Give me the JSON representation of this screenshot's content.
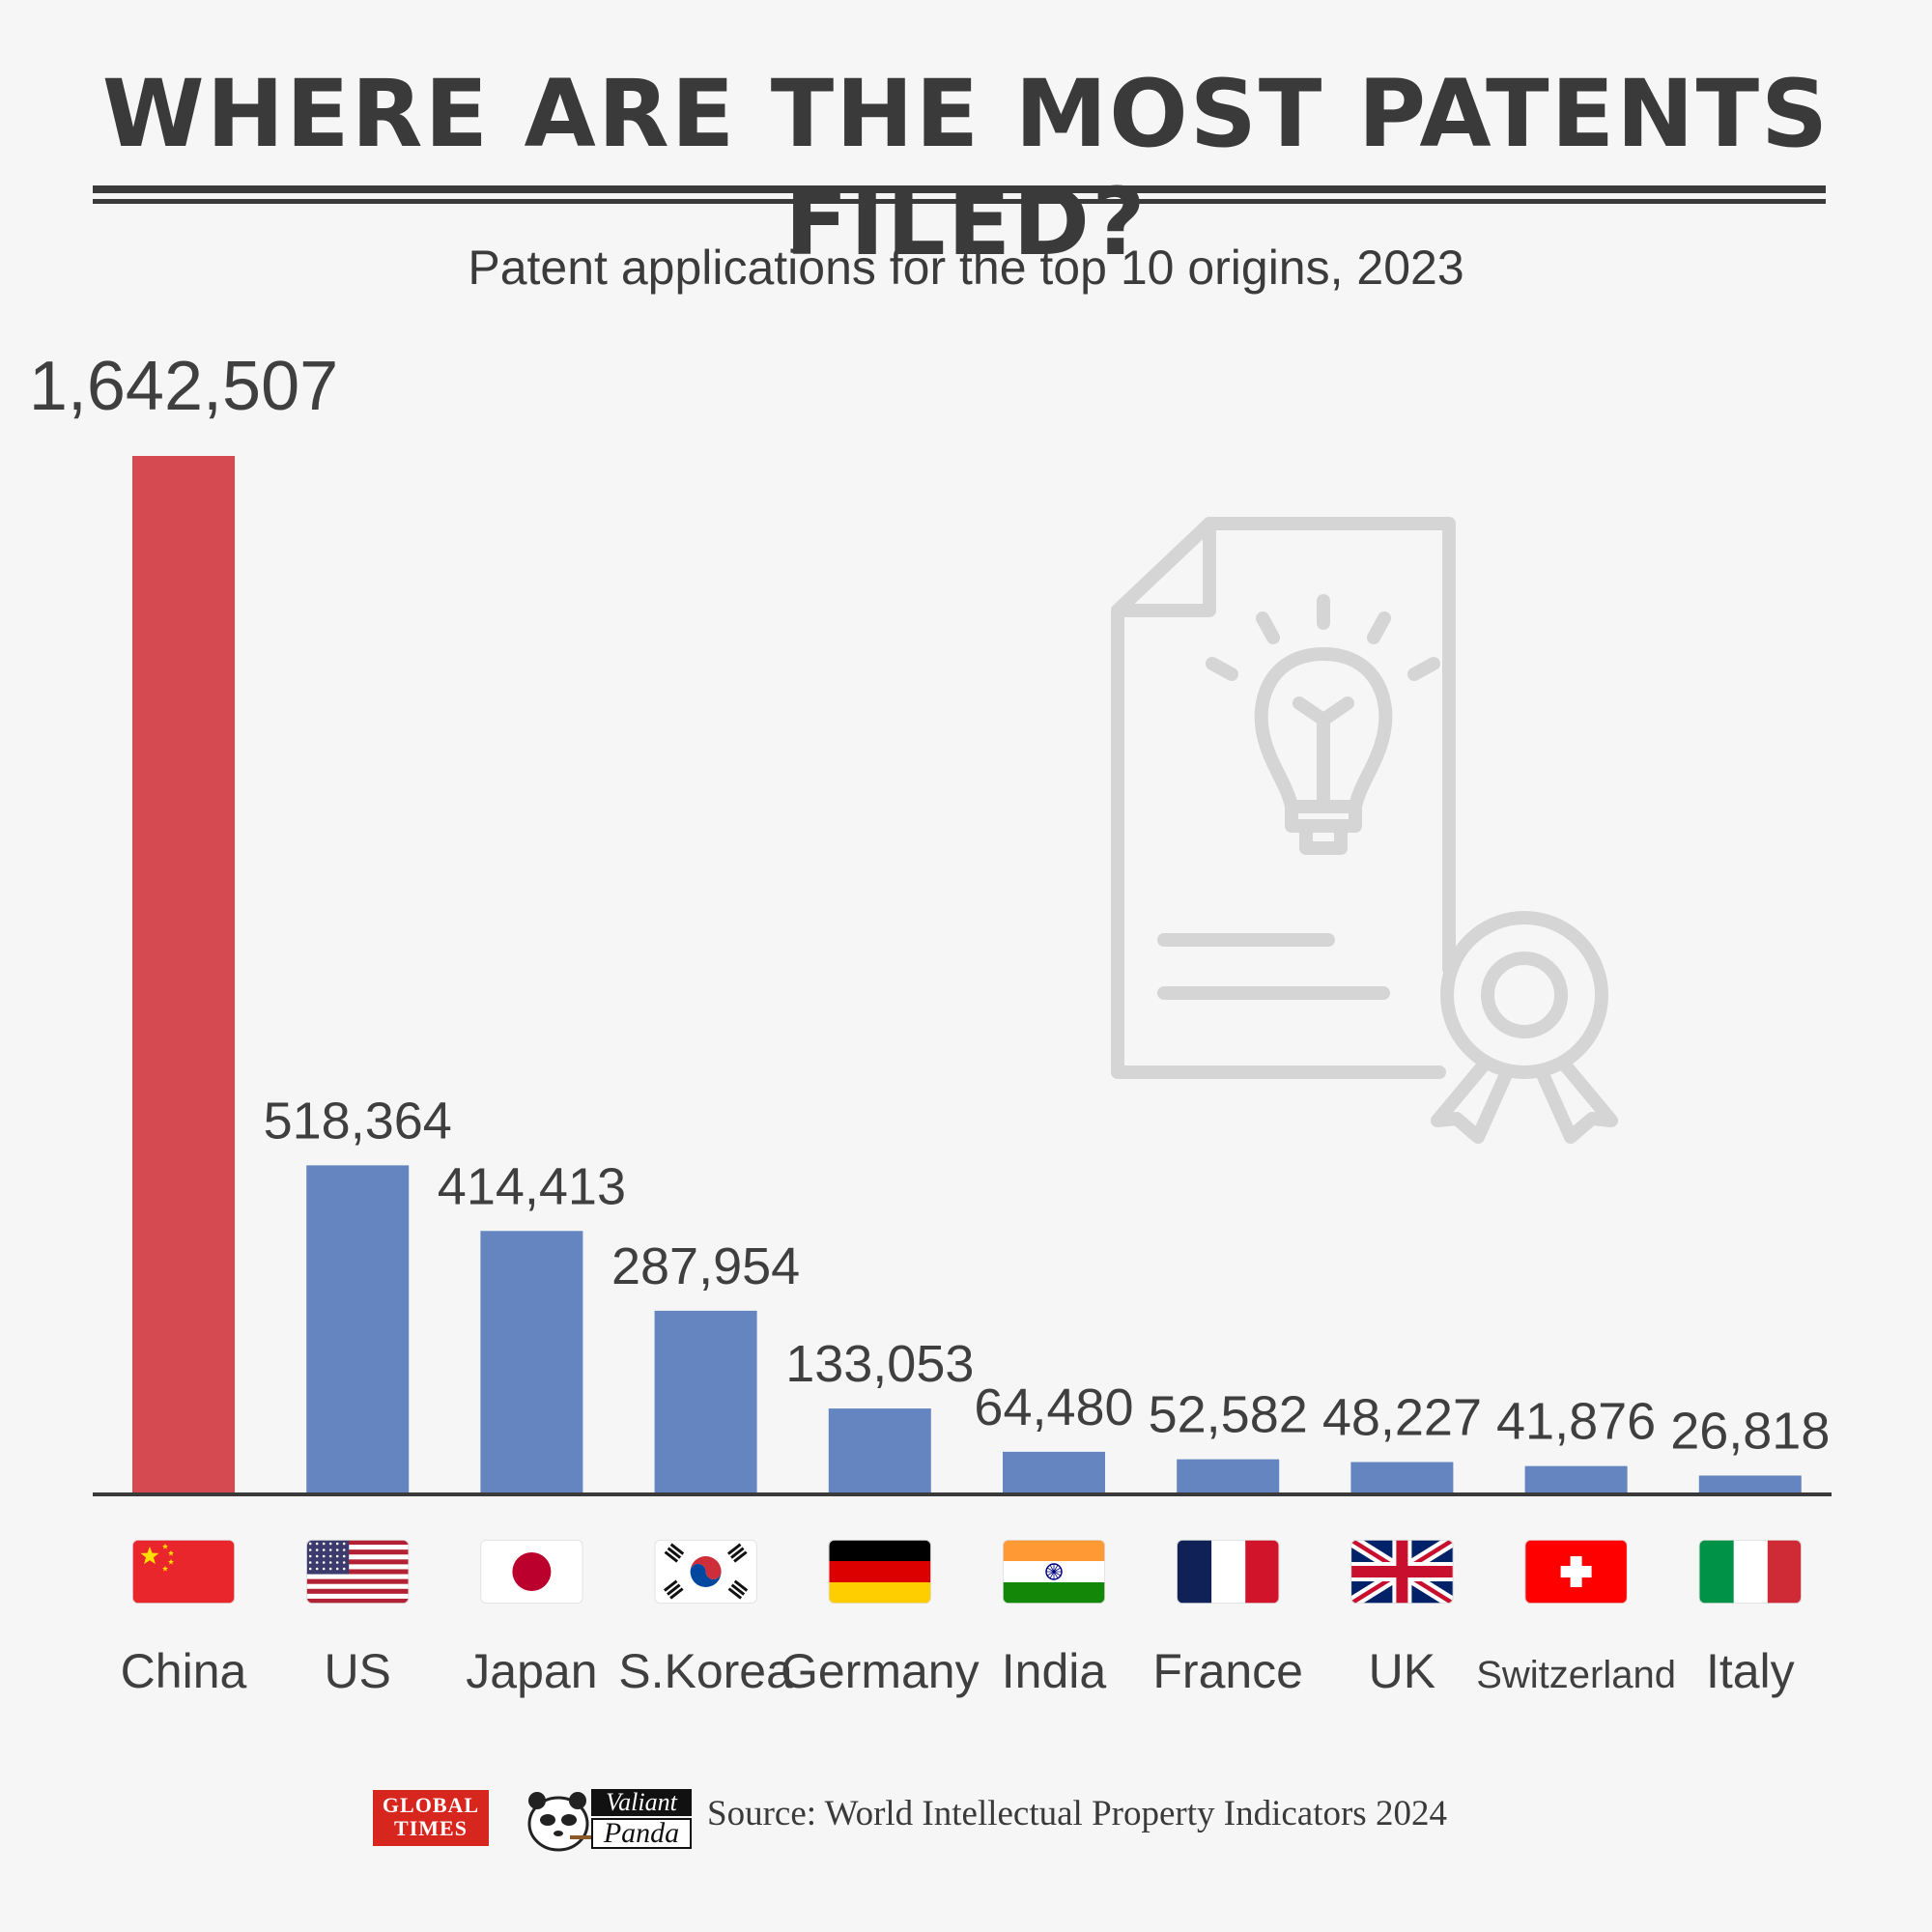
{
  "header": {
    "title": "WHERE ARE THE MOST PATENTS FILED?",
    "subtitle": "Patent applications for the top 10 origins, 2023"
  },
  "chart_data": {
    "type": "bar",
    "title": "WHERE ARE THE MOST PATENTS FILED?",
    "subtitle": "Patent applications for the top 10 origins, 2023",
    "xlabel": "",
    "ylabel": "",
    "categories": [
      "China",
      "US",
      "Japan",
      "S.Korea",
      "Germany",
      "India",
      "France",
      "UK",
      "Switzerland",
      "Italy"
    ],
    "values": [
      1642507,
      518364,
      414413,
      287954,
      133053,
      64480,
      52582,
      48227,
      41876,
      26818
    ],
    "value_labels": [
      "1,642,507",
      "518,364",
      "414,413",
      "287,954",
      "133,053",
      "64,480",
      "52,582",
      "48,227",
      "41,876",
      "26,818"
    ],
    "ylim": [
      0,
      1642507
    ],
    "grid": false,
    "legend": "none",
    "colors": {
      "highlight": "#d44a50",
      "default": "#6585c0",
      "axis": "#3a3a3a",
      "icon": "#d5d5d5"
    },
    "highlight_category": "China",
    "flags": [
      "china-flag",
      "us-flag",
      "japan-flag",
      "south-korea-flag",
      "germany-flag",
      "india-flag",
      "france-flag",
      "uk-flag",
      "switzerland-flag",
      "italy-flag"
    ]
  },
  "footer": {
    "logo_global_times_line1": "GLOBAL",
    "logo_global_times_line2": "TIMES",
    "logo_panda_line1": "Valiant",
    "logo_panda_line2": "Panda",
    "source": "Source: World Intellectual Property Indicators 2024"
  }
}
